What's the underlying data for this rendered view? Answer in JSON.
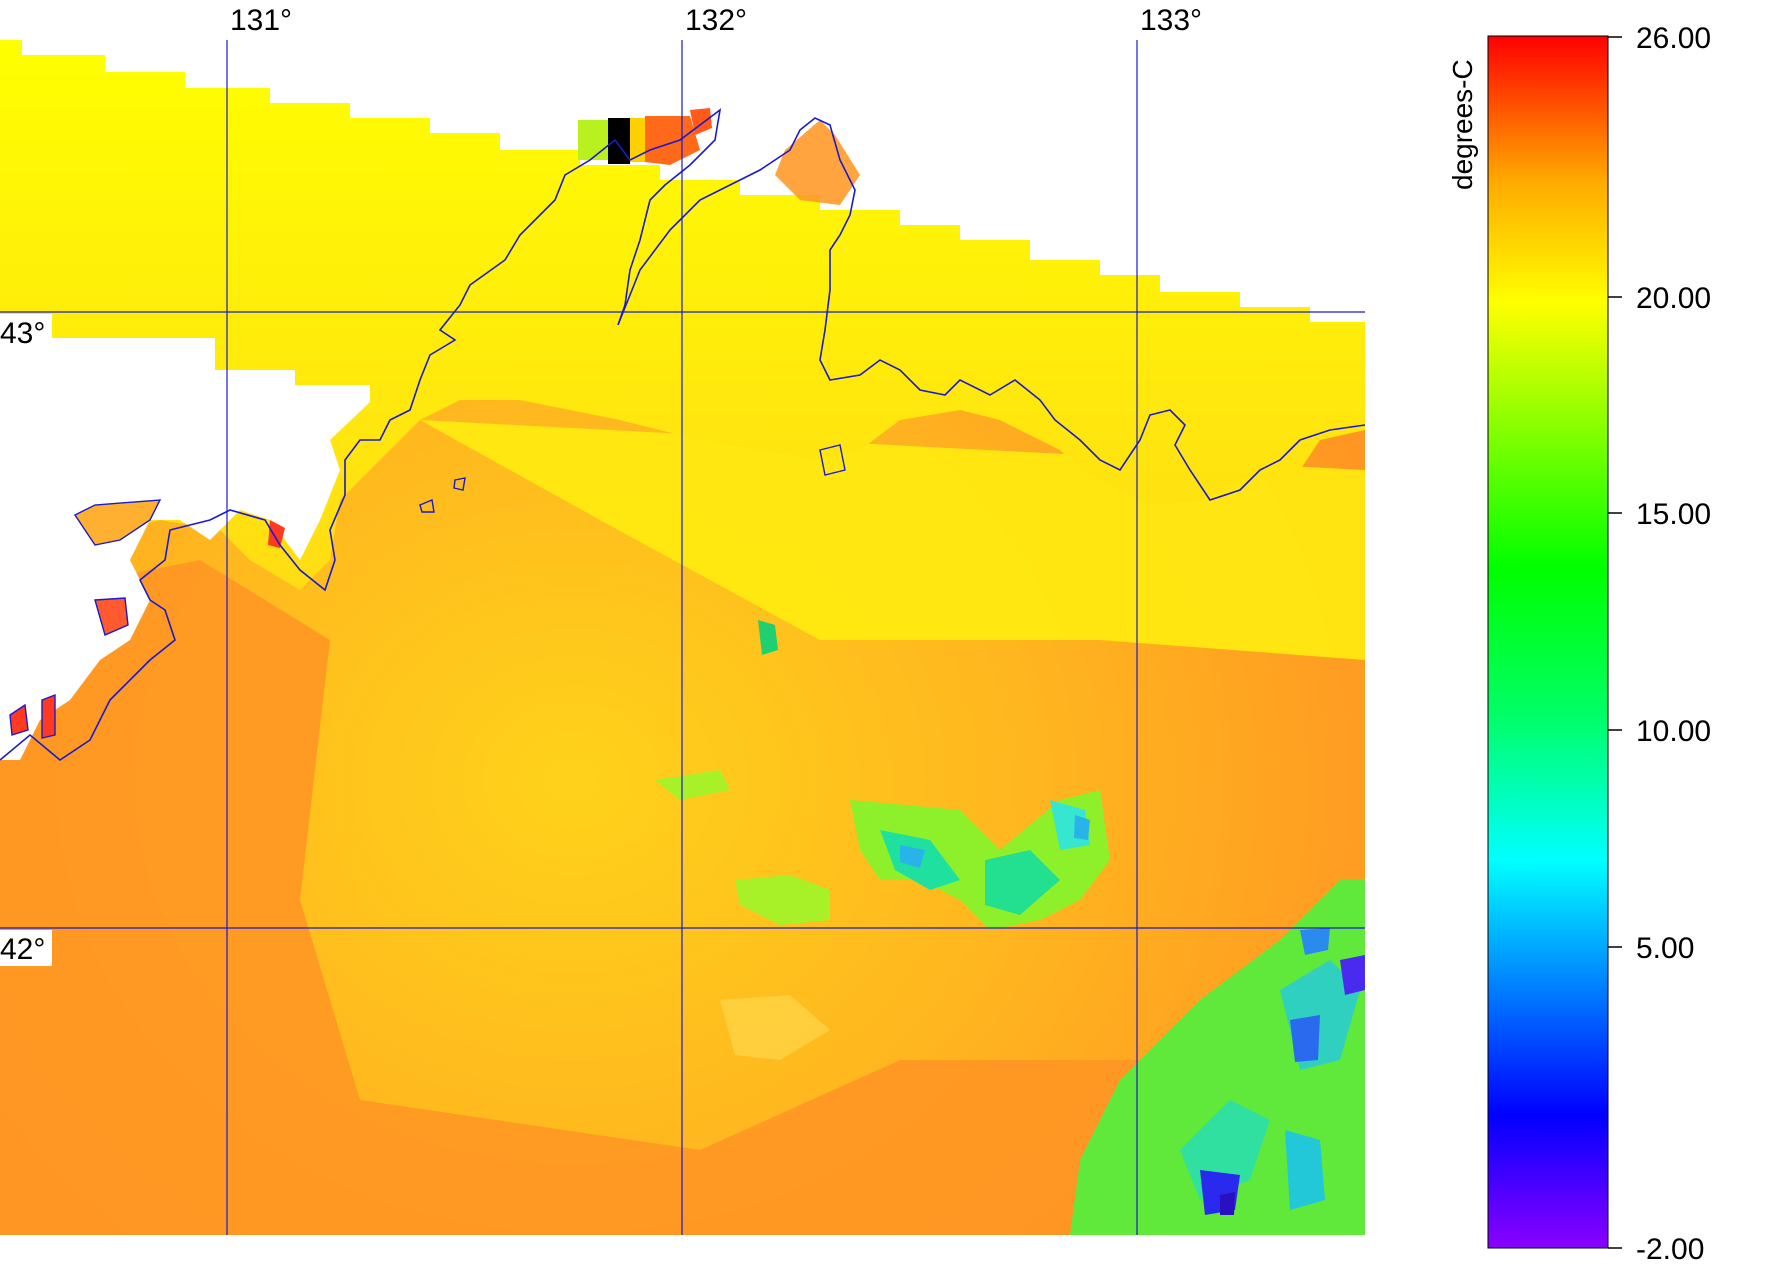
{
  "map": {
    "lon_labels": [
      "131°",
      "132°",
      "133°"
    ],
    "lat_labels": [
      "43°",
      "42°"
    ],
    "gridline_color": "#1a1acc",
    "coastline_color": "#1a1acc"
  },
  "colorbar": {
    "title": "degrees-C",
    "range": [
      -2.0,
      26.0
    ],
    "tick_labels": [
      "26.00",
      "20.00",
      "15.00",
      "10.00",
      "5.00",
      "-2.00"
    ],
    "colormap": [
      "#8a00ff",
      "#0000ff",
      "#00ffff",
      "#00ff66",
      "#00ff00",
      "#ffff00",
      "#ffaa00",
      "#ff0000"
    ]
  },
  "colors": {
    "land_fill": "#ffff00",
    "sea_warm": "#ff9a26",
    "sea_mid": "#ffc81c",
    "no_data": "#ffffff"
  }
}
